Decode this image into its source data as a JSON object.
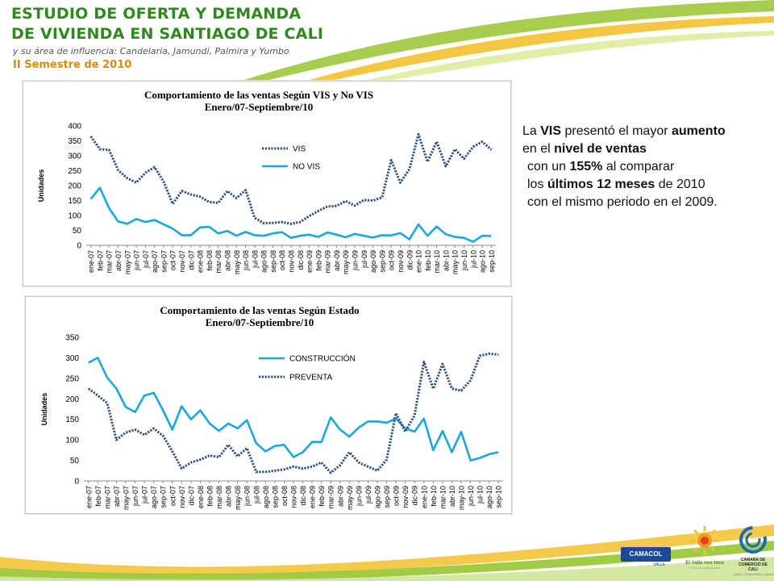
{
  "header": {
    "title_line1": "ESTUDIO DE OFERTA Y DEMANDA",
    "title_line2": "DE VIVIENDA EN SANTIAGO DE CALI",
    "subtitle": "y su área de influencia: Candelaria, Jamundí, Palmira y Yumbo",
    "semester": "II Semestre de 2010"
  },
  "summary": {
    "l1_a": "La ",
    "l1_b": "VIS",
    "l1_c": " presentó el mayor ",
    "l1_d": "aumento",
    "l2_a": "en el ",
    "l2_b": "nivel de ventas",
    "l3_a": "con un ",
    "l3_b": "155%",
    "l3_c": " al comparar",
    "l4_a": "los ",
    "l4_b": "últimos 12 meses",
    "l4_c": " de 2010",
    "l5": "con el mismo periodo en el 2009."
  },
  "logos": {
    "camacol": "CAMACOL",
    "camacol_sub": "VALLE",
    "valle": "El Valle nos toca",
    "valle_sub": "Clima de prosperidad",
    "camara": "CAMARA DE COMERCIO DE CALI",
    "camara_sub": "Unión, Compromiso y Acción"
  },
  "colors": {
    "series_dotted": "#2e4f7f",
    "series_solid": "#1aa7dc",
    "title_green": "#2f8a1e",
    "semester_orange": "#d98a14"
  },
  "chart_data": [
    {
      "type": "line",
      "title": "Comportamiento de las ventas Según VIS y No VIS",
      "subtitle": "Enero/07-Septiembre/10",
      "xlabel": "",
      "ylabel": "Unidades",
      "ylim": [
        0,
        400
      ],
      "yticks": [
        0,
        50,
        100,
        150,
        200,
        250,
        300,
        350,
        400
      ],
      "grid": false,
      "legend": "right",
      "categories": [
        "ene-07",
        "feb-07",
        "mar-07",
        "abr-07",
        "may-07",
        "jun-07",
        "jul-07",
        "ago-07",
        "sep-07",
        "oct-07",
        "nov-07",
        "dic-07",
        "ene-08",
        "feb-08",
        "mar-08",
        "abr-08",
        "may-08",
        "jun-08",
        "jul-08",
        "ago-08",
        "sep-08",
        "oct-08",
        "nov-08",
        "dic-08",
        "ene-09",
        "feb-09",
        "mar-09",
        "abr-09",
        "may-09",
        "jun-09",
        "jul-09",
        "ago-09",
        "sep-09",
        "oct-09",
        "nov-09",
        "dic-09",
        "ene-10",
        "feb-10",
        "mar-10",
        "abr-10",
        "may-10",
        "jun-10",
        "jul-10",
        "ago-10",
        "sep-10"
      ],
      "xtick_labels": [
        "ene-07",
        "feb-07",
        "mar-07",
        "abr-07",
        "may-07",
        "jun-07",
        "jul-07",
        "ago-07",
        "sep-07",
        "oct-07",
        "nov-07",
        "dic-07",
        "ene-08",
        "feb-08",
        "mar-08",
        "abr-08",
        "may-08",
        "jun-08",
        "jul-08",
        "ago-08",
        "sep-08",
        "oct-08",
        "nov-08",
        "dic-08",
        "ene-09",
        "feb-09",
        "mar-09",
        "abr-09",
        "may-09",
        "jun-09",
        "jul-09",
        "ago-09",
        "sep-09",
        "oct-09",
        "nov-09",
        "dic-09",
        "ene-10",
        "feb-10",
        "mar-10",
        "abr-10",
        "may-10",
        "jun-10",
        "jul-10",
        "ago-10",
        "sep-10"
      ],
      "series": [
        {
          "name": "VIS",
          "style": "dotted",
          "values": [
            365,
            322,
            320,
            252,
            225,
            210,
            243,
            262,
            213,
            139,
            182,
            170,
            163,
            145,
            142,
            182,
            158,
            185,
            92,
            74,
            75,
            78,
            72,
            78,
            98,
            115,
            130,
            132,
            148,
            133,
            152,
            150,
            160,
            285,
            210,
            255,
            372,
            280,
            347,
            265,
            322,
            290,
            330,
            347,
            320
          ]
        },
        {
          "name": "NO VIS",
          "style": "solid",
          "values": [
            155,
            193,
            125,
            80,
            72,
            88,
            78,
            85,
            70,
            56,
            34,
            34,
            60,
            62,
            40,
            48,
            32,
            45,
            34,
            32,
            40,
            44,
            25,
            32,
            36,
            28,
            43,
            36,
            27,
            38,
            32,
            26,
            34,
            33,
            41,
            20,
            70,
            32,
            63,
            37,
            28,
            25,
            12,
            32,
            31
          ]
        }
      ]
    },
    {
      "type": "line",
      "title": "Comportamiento de las ventas Según Estado",
      "subtitle": "Enero/07-Septiembre/10",
      "xlabel": "",
      "ylabel": "Unidades",
      "ylim": [
        0,
        350
      ],
      "yticks": [
        0,
        50,
        100,
        150,
        200,
        250,
        300,
        350
      ],
      "grid": false,
      "legend": "right",
      "categories": [
        "ene-07",
        "feb-07",
        "mar-07",
        "abr-07",
        "may-07",
        "jun-07",
        "jul-07",
        "ago-07",
        "sep-07",
        "oct-07",
        "nov-07",
        "dic-07",
        "ene-08",
        "feb-08",
        "mar-08",
        "abr-08",
        "may-08",
        "jun-08",
        "jul-08",
        "ago-08",
        "sep-08",
        "oct-08",
        "nov-08",
        "dic-08",
        "ene-09",
        "feb-09",
        "mar-09",
        "abr-09",
        "may-09",
        "jun-09",
        "jul-09",
        "ago-09",
        "sep-09",
        "oct-09",
        "nov-09",
        "dic-09",
        "ene-10",
        "feb-10",
        "mar-10",
        "abr-10",
        "may-10",
        "jun-10",
        "jul-10",
        "ago-10",
        "sep-10"
      ],
      "xtick_labels": [
        "ene-07",
        "feb-07",
        "mar-07",
        "abr-07",
        "may-07",
        "jun-07",
        "jul-07",
        "ago-07",
        "sep-07",
        "oct-07",
        "nov-07",
        "dic-07",
        "ene-08",
        "feb-08",
        "mar-08",
        "abr-08",
        "may-08",
        "jun-08",
        "jul-08",
        "ago-08",
        "sep-08",
        "oct-08",
        "nov-08",
        "dic-08",
        "ene-09",
        "feb-09",
        "mar-09",
        "abr-09",
        "may-09",
        "jun-09",
        "jul-09",
        "ago-09",
        "sep-09",
        "oct-09",
        "nov-09",
        "dic-09",
        "ene-10",
        "feb-10",
        "mar-10",
        "abr-10",
        "may-10",
        "jun-10",
        "jul-10",
        "ago-10",
        "sep-10"
      ],
      "series": [
        {
          "name": "CONSTRUCCIÓN",
          "style": "solid",
          "values": [
            288,
            300,
            252,
            225,
            180,
            168,
            208,
            215,
            172,
            125,
            182,
            150,
            172,
            140,
            122,
            140,
            128,
            148,
            92,
            72,
            85,
            88,
            58,
            70,
            95,
            95,
            155,
            125,
            108,
            130,
            145,
            145,
            142,
            152,
            128,
            120,
            152,
            75,
            122,
            70,
            120,
            50,
            56,
            65,
            70
          ]
        },
        {
          "name": "PREVENTA",
          "style": "dotted",
          "values": [
            225,
            208,
            190,
            100,
            118,
            125,
            112,
            128,
            110,
            72,
            30,
            45,
            52,
            62,
            58,
            88,
            60,
            80,
            22,
            22,
            25,
            28,
            35,
            30,
            35,
            45,
            20,
            38,
            70,
            45,
            35,
            25,
            52,
            165,
            120,
            160,
            290,
            225,
            285,
            225,
            220,
            245,
            305,
            310,
            308
          ]
        }
      ]
    }
  ]
}
